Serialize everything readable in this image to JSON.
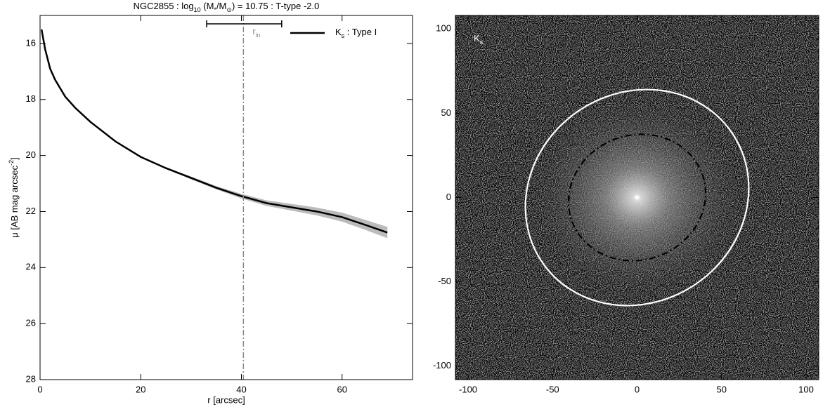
{
  "chart_data": [
    {
      "type": "line",
      "title_parts": [
        "NGC2855 : log",
        "10",
        " (M",
        "*",
        "/M",
        "⊙",
        ") = 10.75 : T-type -2.0"
      ],
      "xlabel": "r [arcsec]",
      "ylabel_parts": [
        "μ [AB mag arcsec",
        "-2",
        "]"
      ],
      "x": [
        0.3,
        0.5,
        1,
        2,
        3,
        5,
        7,
        10,
        15,
        20,
        25,
        30,
        35,
        40,
        45,
        50,
        55,
        60,
        65,
        69
      ],
      "series": [
        {
          "name": [
            "K",
            "s",
            " : Type I"
          ],
          "color": "#000000",
          "values": [
            15.5,
            15.7,
            16.2,
            16.9,
            17.3,
            17.9,
            18.3,
            18.8,
            19.5,
            20.05,
            20.45,
            20.8,
            21.15,
            21.45,
            21.7,
            21.85,
            22.0,
            22.2,
            22.5,
            22.75
          ],
          "error": [
            0,
            0,
            0,
            0,
            0,
            0,
            0,
            0,
            0,
            0.02,
            0.03,
            0.05,
            0.06,
            0.08,
            0.1,
            0.12,
            0.14,
            0.16,
            0.18,
            0.2
          ],
          "error_color": "#bbbbbb"
        }
      ],
      "r_in": 40.4,
      "r_in_label": [
        "r",
        "in"
      ],
      "r_in_range": [
        33.1,
        48.0
      ],
      "r_in_level": 15.3,
      "xlim": [
        0,
        74
      ],
      "ylim": [
        15,
        28
      ],
      "y_reversed": true,
      "xticks": [
        0,
        20,
        40,
        60
      ],
      "yticks": [
        16,
        18,
        20,
        22,
        24,
        26,
        28
      ]
    },
    {
      "type": "image",
      "label_parts": [
        "K",
        "s"
      ],
      "xlim": [
        -107.5,
        107.5
      ],
      "ylim": [
        -108,
        108
      ],
      "xticks": [
        -100,
        -50,
        0,
        50,
        100
      ],
      "yticks": [
        -100,
        -50,
        0,
        50,
        100
      ],
      "ellipses": [
        {
          "cx": 0,
          "cy": 0,
          "a": 68,
          "b": 62,
          "angle": 35,
          "color": "#ffffff",
          "dashed": false
        },
        {
          "cx": 0,
          "cy": 0,
          "a": 41,
          "b": 37,
          "angle": 20,
          "color": "#000000",
          "dashed": true
        }
      ]
    }
  ]
}
